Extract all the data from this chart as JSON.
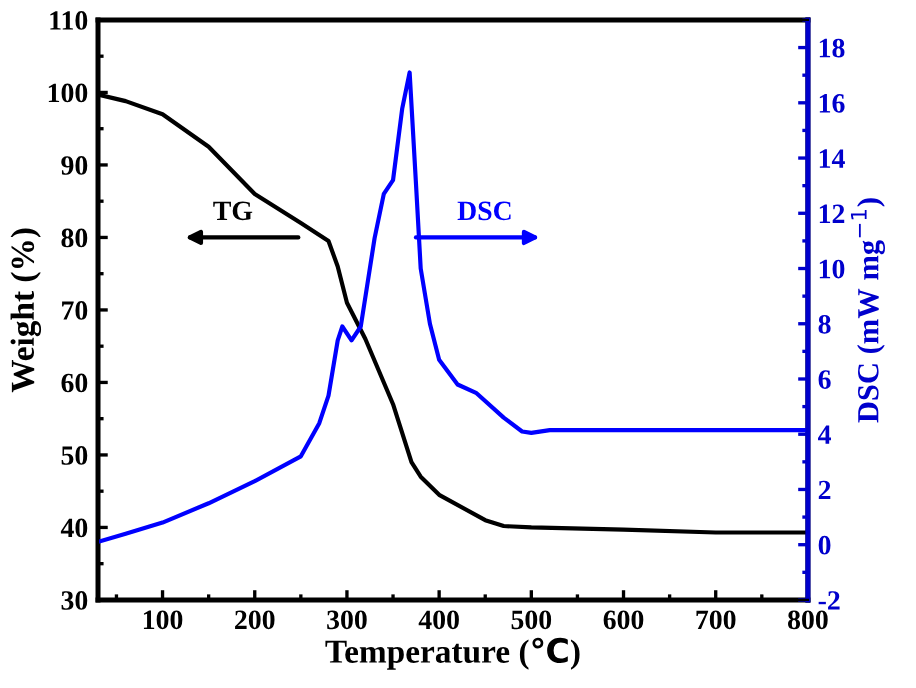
{
  "chart_data": {
    "type": "line",
    "xlabel": "Temperature (℃)",
    "ylabel": "Weight (%)",
    "y2label": "DSC (mW mg$^{−1}$)",
    "xlim": [
      30,
      800
    ],
    "xticks": [
      100,
      200,
      300,
      400,
      500,
      600,
      700,
      800
    ],
    "ylim": [
      30,
      110
    ],
    "yticks": [
      30,
      40,
      50,
      60,
      70,
      80,
      90,
      100,
      110
    ],
    "y2lim": [
      -2,
      19
    ],
    "y2ticks": [
      -2,
      0,
      2,
      4,
      6,
      8,
      10,
      12,
      14,
      16,
      18
    ],
    "series": [
      {
        "name": "TG",
        "color": "#000000",
        "x": [
          30,
          60,
          100,
          150,
          200,
          250,
          280,
          290,
          300,
          320,
          350,
          370,
          380,
          400,
          450,
          470,
          500,
          600,
          700,
          800
        ],
        "values": [
          99.7,
          98.8,
          97,
          92.5,
          86,
          82,
          79.5,
          76,
          71,
          66,
          57,
          49,
          47,
          44.5,
          41,
          40.2,
          40,
          39.7,
          39.3,
          39.3
        ]
      },
      {
        "name": "DSC",
        "color": "#0000ff",
        "axis": "y2",
        "x": [
          30,
          60,
          100,
          150,
          200,
          250,
          270,
          280,
          290,
          295,
          305,
          315,
          330,
          340,
          350,
          360,
          368,
          375,
          380,
          390,
          400,
          420,
          440,
          470,
          490,
          500,
          520,
          600,
          700,
          800
        ],
        "values": [
          0.1,
          0.4,
          0.8,
          1.5,
          2.3,
          3.2,
          4.4,
          5.4,
          7.4,
          7.9,
          7.4,
          7.9,
          11.1,
          12.7,
          13.2,
          15.8,
          17.1,
          13,
          10,
          8,
          6.7,
          5.8,
          5.5,
          4.6,
          4.1,
          4.05,
          4.15,
          4.15,
          4.15,
          4.15
        ]
      }
    ]
  }
}
